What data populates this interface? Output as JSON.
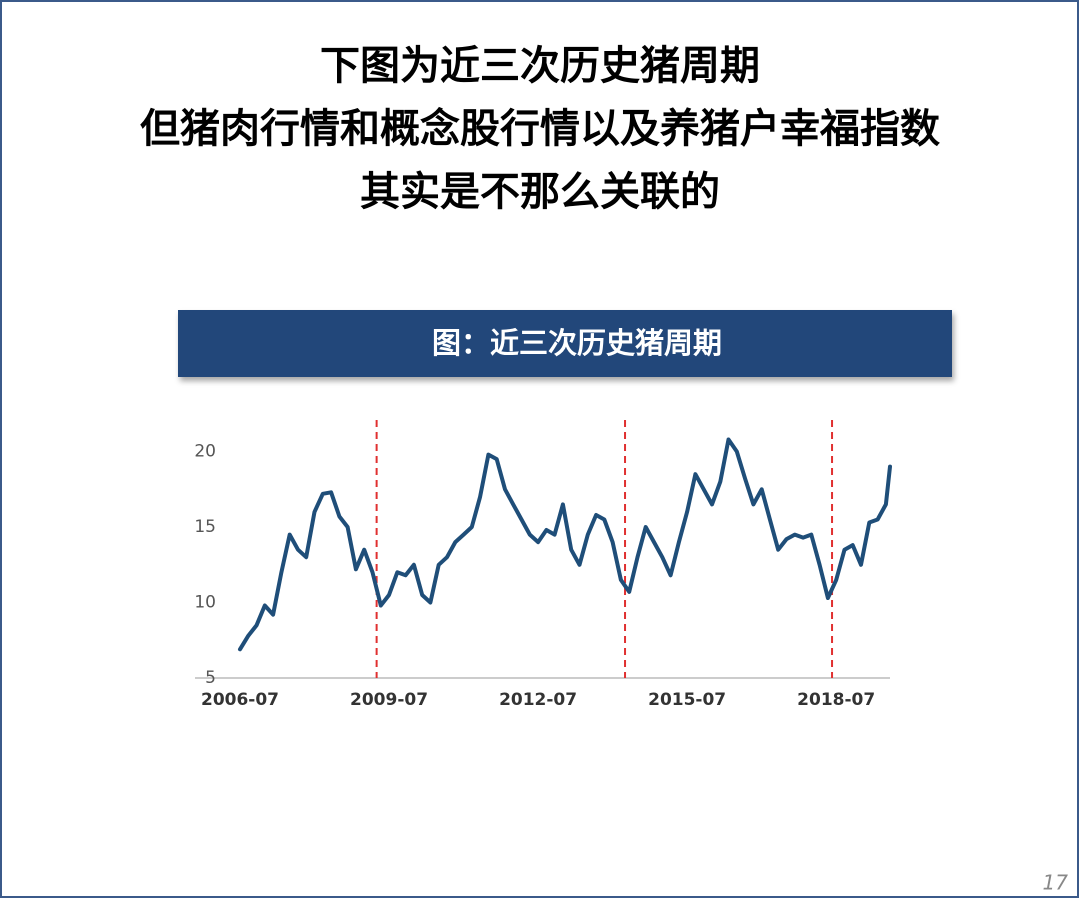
{
  "slide": {
    "title_lines": [
      "下图为近三次历史猪周期",
      "但猪肉行情和概念股行情以及养猪户幸福指数",
      "其实是不那么关联的"
    ],
    "page_number": "17"
  },
  "chart_data": {
    "type": "line",
    "title": "图：近三次历史猪周期",
    "x": [
      "2006-07",
      "2006-09",
      "2006-11",
      "2007-01",
      "2007-03",
      "2007-05",
      "2007-07",
      "2007-09",
      "2007-11",
      "2008-01",
      "2008-03",
      "2008-05",
      "2008-07",
      "2008-09",
      "2008-11",
      "2009-01",
      "2009-03",
      "2009-05",
      "2009-07",
      "2009-09",
      "2009-11",
      "2010-01",
      "2010-03",
      "2010-05",
      "2010-07",
      "2010-09",
      "2010-11",
      "2011-01",
      "2011-03",
      "2011-05",
      "2011-07",
      "2011-09",
      "2011-11",
      "2012-01",
      "2012-03",
      "2012-05",
      "2012-07",
      "2012-09",
      "2012-11",
      "2013-01",
      "2013-03",
      "2013-05",
      "2013-07",
      "2013-09",
      "2013-11",
      "2014-01",
      "2014-03",
      "2014-05",
      "2014-07",
      "2014-09",
      "2014-11",
      "2015-01",
      "2015-03",
      "2015-05",
      "2015-07",
      "2015-09",
      "2015-11",
      "2016-01",
      "2016-03",
      "2016-05",
      "2016-07",
      "2016-09",
      "2016-11",
      "2017-01",
      "2017-03",
      "2017-05",
      "2017-07",
      "2017-09",
      "2017-11",
      "2018-01",
      "2018-03",
      "2018-05",
      "2018-07",
      "2018-09",
      "2018-11",
      "2019-01",
      "2019-03",
      "2019-05",
      "2019-07",
      "2019-08"
    ],
    "series": [
      {
        "color": "#1f4e79",
        "values": [
          6.9,
          7.8,
          8.5,
          9.8,
          9.2,
          12.0,
          14.5,
          13.5,
          13.0,
          16.0,
          17.2,
          17.3,
          15.7,
          15.0,
          12.2,
          13.5,
          12.0,
          9.8,
          10.5,
          12.0,
          11.8,
          12.5,
          10.5,
          10.0,
          12.5,
          13.0,
          14.0,
          14.5,
          15.0,
          17.0,
          19.8,
          19.5,
          17.5,
          16.5,
          15.5,
          14.5,
          14.0,
          14.8,
          14.5,
          16.5,
          13.5,
          12.5,
          14.5,
          15.8,
          15.5,
          14.0,
          11.5,
          10.7,
          13.0,
          15.0,
          14.0,
          13.0,
          11.8,
          14.0,
          16.0,
          18.5,
          17.5,
          16.5,
          18.0,
          20.8,
          20.0,
          18.2,
          16.5,
          17.5,
          15.5,
          13.5,
          14.2,
          14.5,
          14.3,
          14.5,
          12.5,
          10.3,
          11.5,
          13.5,
          13.8,
          12.5,
          15.3,
          15.5,
          16.5,
          19.0
        ]
      }
    ],
    "markers": [
      "2009-04",
      "2014-04",
      "2018-06"
    ],
    "marker_color": "#e03030",
    "xlim": [
      "2006-07",
      "2019-08"
    ],
    "xticks": [
      "2006-07",
      "2009-07",
      "2012-07",
      "2015-07",
      "2018-07"
    ],
    "ylim": [
      5,
      21.5
    ],
    "yticks": [
      5,
      10,
      15,
      20
    ],
    "grid": false
  }
}
